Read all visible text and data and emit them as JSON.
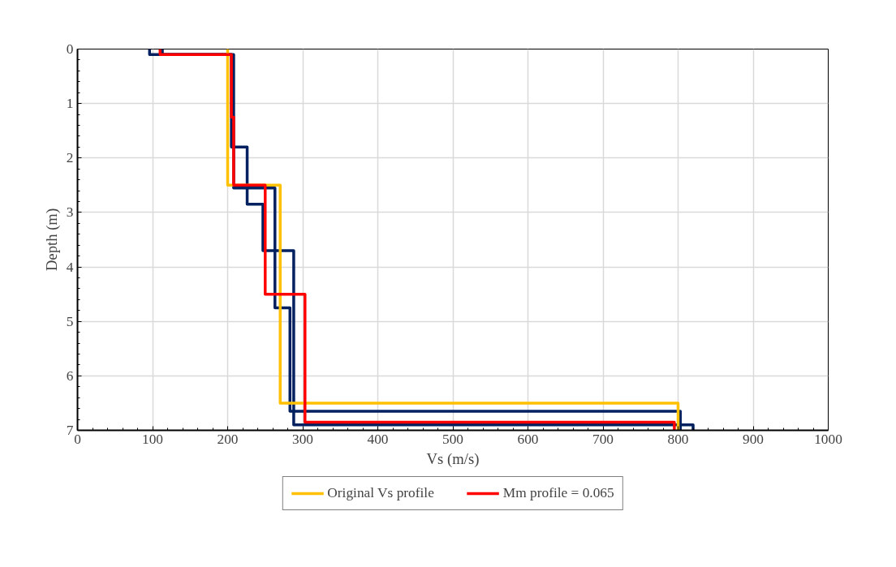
{
  "chart_data": {
    "type": "line",
    "xlabel": "Vs (m/s)",
    "ylabel": "Depth (m)",
    "xlim": [
      0,
      1000
    ],
    "xticks": [
      0,
      100,
      200,
      300,
      400,
      500,
      600,
      700,
      800,
      900,
      1000
    ],
    "ylim": [
      7,
      0
    ],
    "yticks": [
      0,
      1,
      2,
      3,
      4,
      5,
      6,
      7
    ],
    "grid": true,
    "legend": "bottom",
    "marker": "none",
    "line_style": "solid",
    "series": [
      {
        "color": "#002060",
        "x": [
          96,
          96,
          205,
          205,
          226,
          226,
          247,
          247,
          288,
          288,
          820,
          820
        ],
        "values": [
          0,
          0.1,
          0.1,
          1.8,
          1.8,
          2.85,
          2.85,
          3.7,
          3.7,
          6.9,
          6.9,
          7
        ]
      },
      {
        "color": "#002060",
        "x": [
          113,
          113,
          208,
          208,
          263,
          263,
          283,
          283,
          803,
          803
        ],
        "values": [
          0,
          0.1,
          0.1,
          2.55,
          2.55,
          4.75,
          4.75,
          6.65,
          6.65,
          7
        ]
      },
      {
        "name": "Original Vs profile",
        "color": "#ffc000",
        "x": [
          200,
          200,
          270,
          270,
          800,
          800
        ],
        "values": [
          0,
          2.5,
          2.5,
          6.5,
          6.5,
          7
        ]
      },
      {
        "name": "Mm profile = 0.065",
        "color": "#ff0000",
        "x": [
          110,
          110,
          205,
          205,
          208,
          208,
          250,
          250,
          303,
          303,
          795,
          795
        ],
        "values": [
          0,
          0.1,
          0.1,
          1.25,
          1.25,
          2.5,
          2.5,
          4.5,
          4.5,
          6.85,
          6.85,
          7
        ]
      }
    ]
  }
}
